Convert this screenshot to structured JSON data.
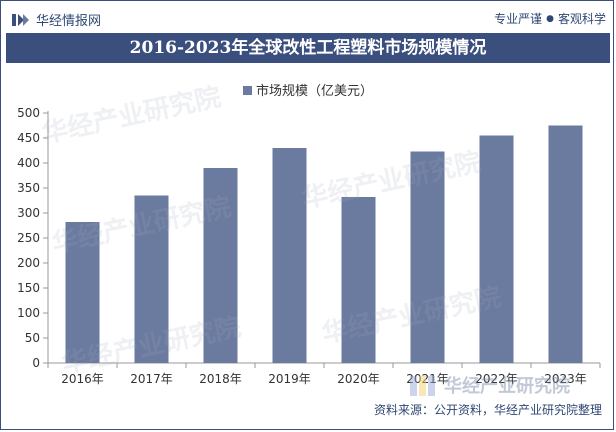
{
  "brand": {
    "name": "华经情报网",
    "slogan_left": "专业严谨",
    "slogan_right": "客观科学"
  },
  "title": "2016-2023年全球改性工程塑料市场规模情况",
  "source": "资料来源：公开资料，华经产业研究院整理",
  "watermark": "华经产业研究院",
  "colors": {
    "bar": "#6b7a9f",
    "title_bg": "#3a4f7e",
    "text": "#2f4774"
  },
  "chart_data": {
    "type": "bar",
    "categories": [
      "2016年",
      "2017年",
      "2018年",
      "2019年",
      "2020年",
      "2021年",
      "2022年",
      "2023年"
    ],
    "series": [
      {
        "name": "市场规模（亿美元）",
        "values": [
          282,
          335,
          390,
          430,
          332,
          423,
          455,
          475
        ]
      }
    ],
    "ylim": [
      0,
      500
    ],
    "yticks": [
      0,
      50,
      100,
      150,
      200,
      250,
      300,
      350,
      400,
      450,
      500
    ],
    "legend_position": "top-center",
    "grid": false
  }
}
